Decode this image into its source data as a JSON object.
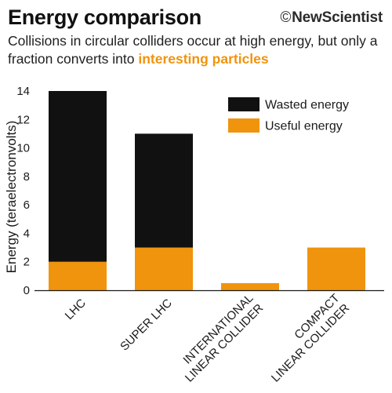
{
  "header": {
    "title": "Energy comparison",
    "brand_symbol": "©",
    "brand": "NewScientist",
    "subtitle_prefix": "Collisions in circular colliders occur at high energy, but only a fraction converts into ",
    "subtitle_highlight": "interesting particles"
  },
  "colors": {
    "wasted": "#111111",
    "useful": "#f0940d",
    "highlight": "#f0940d"
  },
  "chart_data": {
    "type": "bar",
    "stacked": true,
    "categories": [
      "LHC",
      "SUPER LHC",
      "INTERNATIONAL LINEAR COLLIDER",
      "COMPACT LINEAR COLLIDER"
    ],
    "category_label_lines": [
      [
        "LHC"
      ],
      [
        "SUPER LHC"
      ],
      [
        "INTERNATIONAL",
        "LINEAR COLLIDER"
      ],
      [
        "COMPACT",
        "LINEAR COLLIDER"
      ]
    ],
    "series": [
      {
        "name": "Useful energy",
        "values": [
          2,
          3,
          0.5,
          3
        ],
        "color": "#f0940d"
      },
      {
        "name": "Wasted energy",
        "values": [
          12,
          8,
          0,
          0
        ],
        "color": "#111111"
      }
    ],
    "ylabel": "Energy (teraelectronvolts)",
    "xlabel": "",
    "ylim": [
      0,
      14
    ],
    "yticks": [
      0,
      2,
      4,
      6,
      8,
      10,
      12,
      14
    ],
    "grid": false,
    "legend": {
      "position": "top-right",
      "entries": [
        {
          "name": "Wasted energy",
          "color": "#111111"
        },
        {
          "name": "Useful energy",
          "color": "#f0940d"
        }
      ]
    }
  }
}
